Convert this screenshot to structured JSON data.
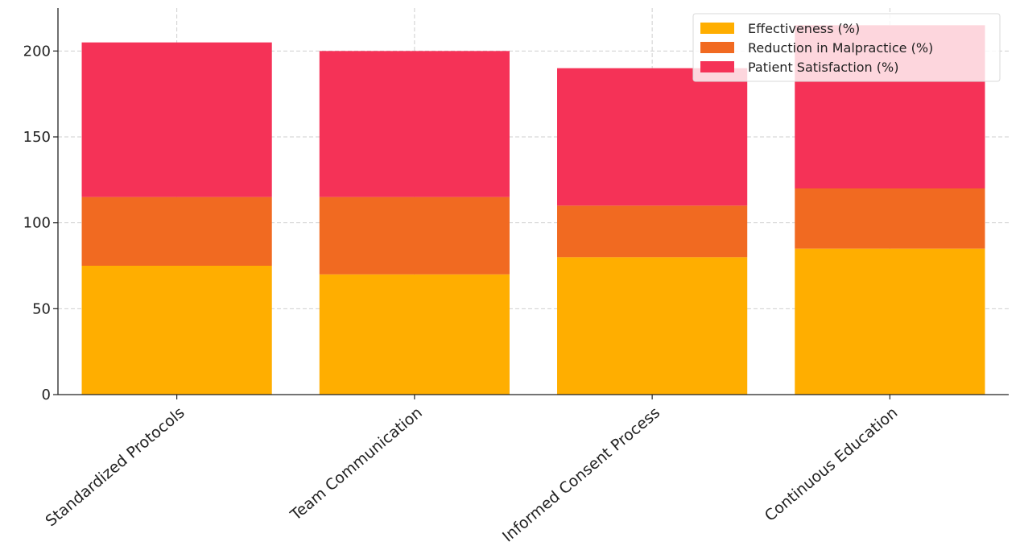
{
  "chart_data": {
    "type": "bar",
    "stacked": true,
    "categories": [
      "Standardized Protocols",
      "Team Communication",
      "Informed Consent Process",
      "Continuous Education"
    ],
    "series": [
      {
        "name": "Effectiveness (%)",
        "values": [
          75,
          70,
          80,
          85
        ],
        "color": "#FFAE00"
      },
      {
        "name": "Reduction in Malpractice (%)",
        "values": [
          40,
          45,
          30,
          35
        ],
        "color": "#F16A21"
      },
      {
        "name": "Patient Satisfaction (%)",
        "values": [
          90,
          85,
          80,
          95
        ],
        "color": "#F53257"
      }
    ],
    "yticks": [
      0,
      50,
      100,
      150,
      200
    ],
    "ylim": [
      0,
      225
    ],
    "grid": true,
    "legend_position": "top-right",
    "title": "",
    "xlabel": "",
    "ylabel": ""
  }
}
